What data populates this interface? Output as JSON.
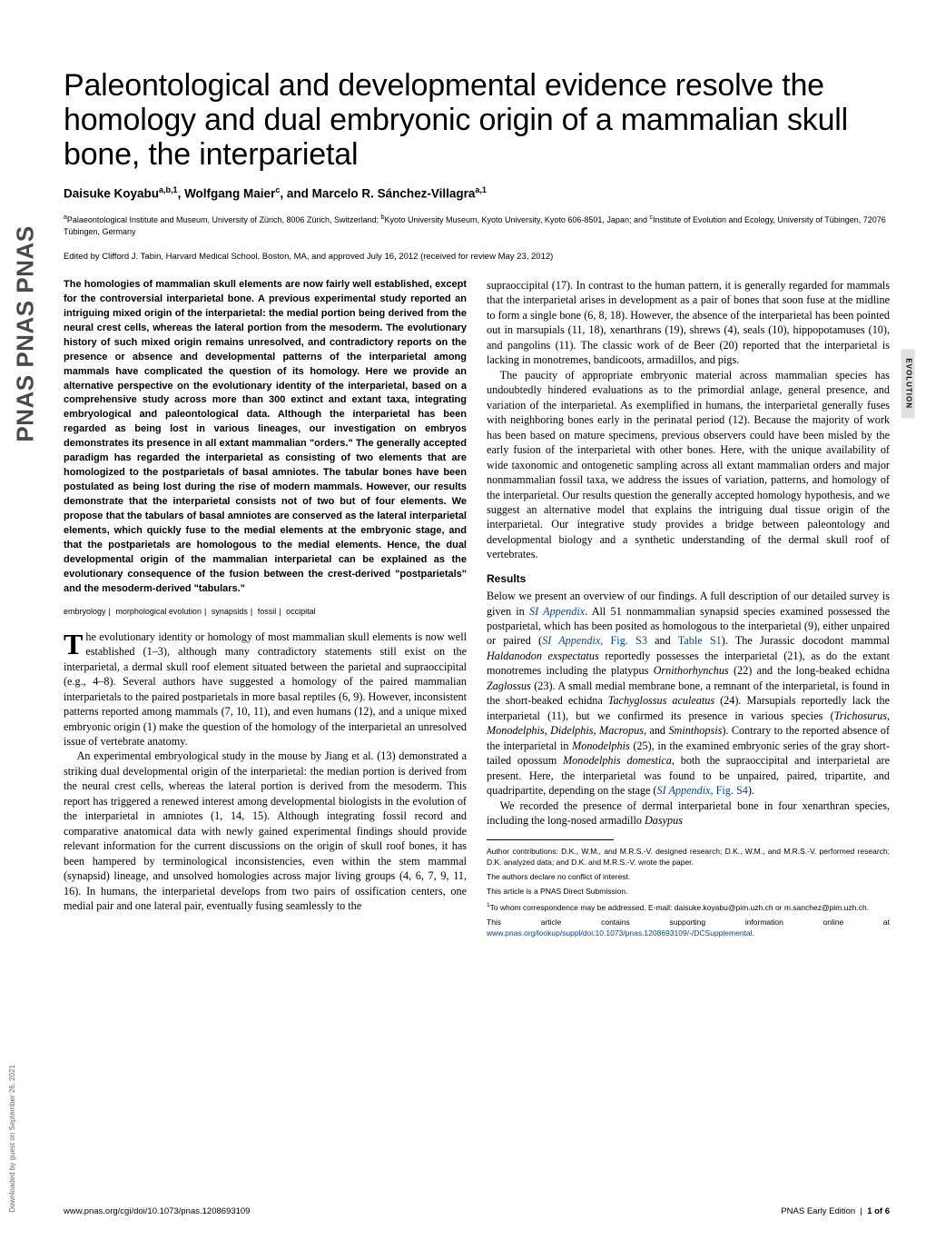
{
  "pnas_logo_repeat": "PNAS  PNAS  PNAS",
  "side_label": "EVOLUTION",
  "downloaded_note": "Downloaded by guest on September 26, 2021",
  "title": "Paleontological and developmental evidence resolve the homology and dual embryonic origin of a mammalian skull bone, the interparietal",
  "authors_html": "Daisuke Koyabu<sup>a,b,1</sup>, Wolfgang Maier<sup>c</sup>, and Marcelo R. Sánchez-Villagra<sup>a,1</sup>",
  "affiliations_html": "<sup>a</sup>Palaeontological Institute and Museum, University of Zürich, 8006 Zürich, Switzerland; <sup>b</sup>Kyoto University Museum, Kyoto University, Kyoto 606-8501, Japan; and <sup>c</sup>Institute of Evolution and Ecology, University of Tübingen, 72076 Tübingen, Germany",
  "edited": "Edited by Clifford J. Tabin, Harvard Medical School, Boston, MA, and approved July 16, 2012 (received for review May 23, 2012)",
  "abstract": "The homologies of mammalian skull elements are now fairly well established, except for the controversial interparietal bone. A previous experimental study reported an intriguing mixed origin of the interparietal: the medial portion being derived from the neural crest cells, whereas the lateral portion from the mesoderm. The evolutionary history of such mixed origin remains unresolved, and contradictory reports on the presence or absence and developmental patterns of the interparietal among mammals have complicated the question of its homology. Here we provide an alternative perspective on the evolutionary identity of the interparietal, based on a comprehensive study across more than 300 extinct and extant taxa, integrating embryological and paleontological data. Although the interparietal has been regarded as being lost in various lineages, our investigation on embryos demonstrates its presence in all extant mammalian \"orders.\" The generally accepted paradigm has regarded the interparietal as consisting of two elements that are homologized to the postparietals of basal amniotes. The tabular bones have been postulated as being lost during the rise of modern mammals. However, our results demonstrate that the interparietal consists not of two but of four elements. We propose that the tabulars of basal amniotes are conserved as the lateral interparietal elements, which quickly fuse to the medial elements at the embryonic stage, and that the postparietals are homologous to the medial elements. Hence, the dual developmental origin of the mammalian interparietal can be explained as the evolutionary consequence of the fusion between the crest-derived \"postparietals\" and the mesoderm-derived \"tabulars.\"",
  "keywords": [
    "embryology",
    "morphological evolution",
    "synapsids",
    "fossil",
    "occipital"
  ],
  "body": {
    "p1": "The evolutionary identity or homology of most mammalian skull elements is now well established (1–3), although many contradictory statements still exist on the interparietal, a dermal skull roof element situated between the parietal and supraoccipital (e.g., 4–8). Several authors have suggested a homology of the paired mammalian interparietals to the paired postparietals in more basal reptiles (6, 9). However, inconsistent patterns reported among mammals (7, 10, 11), and even humans (12), and a unique mixed embryonic origin (1) make the question of the homology of the interparietal an unresolved issue of vertebrate anatomy.",
    "p2": "An experimental embryological study in the mouse by Jiang et al. (13) demonstrated a striking dual developmental origin of the interparietal: the median portion is derived from the neural crest cells, whereas the lateral portion is derived from the mesoderm. This report has triggered a renewed interest among developmental biologists in the evolution of the interparietal in amniotes (1, 14, 15). Although integrating fossil record and comparative anatomical data with newly gained experimental findings should provide relevant information for the current discussions on the origin of skull roof bones, it has been hampered by terminological inconsistencies, even within the stem mammal (synapsid) lineage, and unsolved homologies across major living groups (4, 6, 7, 9, 11, 16). In humans, the interparietal develops from two pairs of ossification centers, one medial pair and one lateral pair, eventually fusing seamlessly to the",
    "p3": "supraoccipital (17). In contrast to the human pattern, it is generally regarded for mammals that the interparietal arises in development as a pair of bones that soon fuse at the midline to form a single bone (6, 8, 18). However, the absence of the interparietal has been pointed out in marsupials (11, 18), xenarthrans (19), shrews (4), seals (10), hippopotamuses (10), and pangolins (11). The classic work of de Beer (20) reported that the interparietal is lacking in monotremes, bandicoots, armadillos, and pigs.",
    "p4": "The paucity of appropriate embryonic material across mammalian species has undoubtedly hindered evaluations as to the primordial anlage, general presence, and variation of the interparietal. As exemplified in humans, the interparietal generally fuses with neighboring bones early in the perinatal period (12). Because the majority of work has been based on mature specimens, previous observers could have been misled by the early fusion of the interparietal with other bones. Here, with the unique availability of wide taxonomic and ontogenetic sampling across all extant mammalian orders and major nonmammalian fossil taxa, we address the issues of variation, patterns, and homology of the interparietal. Our results question the generally accepted homology hypothesis, and we suggest an alternative model that explains the intriguing dual tissue origin of the interparietal. Our integrative study provides a bridge between paleontology and developmental biology and a synthetic understanding of the dermal skull roof of vertebrates.",
    "results_head": "Results",
    "p5_html": "Below we present an overview of our findings. A full description of our detailed survey is given in <span class='italic link'>SI Appendix</span>. All 51 nonmammalian synapsid species examined possessed the postparietal, which has been posited as homologous to the interparietal (9), either unpaired or paired (<span class='italic link'>SI Appendix</span><span class='link'>, Fig. S3</span> and <span class='link'>Table S1</span>). The Jurassic docodont mammal <span class='italic'>Haldanodon exspectatus</span> reportedly possesses the interparietal (21), as do the extant monotremes including the platypus <span class='italic'>Ornithorhynchus</span> (22) and the long-beaked echidna <span class='italic'>Zaglossus</span> (23). A small medial membrane bone, a remnant of the interparietal, is found in the short-beaked echidna <span class='italic'>Tachyglossus aculeatus</span> (24). Marsupials reportedly lack the interparietal (11), but we confirmed its presence in various species (<span class='italic'>Trichosurus</span>, <span class='italic'>Monodelphis</span>, <span class='italic'>Didelphis</span>, <span class='italic'>Macropus</span>, and <span class='italic'>Sminthopsis</span>). Contrary to the reported absence of the interparietal in <span class='italic'>Monodelphis</span> (25), in the examined embryonic series of the gray short-tailed opossum <span class='italic'>Monodelphis domestica</span>, both the supraoccipital and interparietal are present. Here, the interparietal was found to be unpaired, paired, tripartite, and quadripartite, depending on the stage (<span class='italic link'>SI Appendix</span><span class='link'>, Fig. S4</span>).",
    "p6_html": "We recorded the presence of dermal interparietal bone in four xenarthran species, including the long-nosed armadillo <span class='italic'>Dasypus</span>"
  },
  "footnotes": {
    "author_contrib": "Author contributions: D.K., W.M., and M.R.S.-V. designed research; D.K., W.M., and M.R.S.-V. performed research; D.K. analyzed data; and D.K. and M.R.S.-V. wrote the paper.",
    "conflict": "The authors declare no conflict of interest.",
    "direct": "This article is a PNAS Direct Submission.",
    "correspondence_html": "<sup>1</sup>To whom correspondence may be addressed. E-mail: daisuke.koyabu@pim.uzh.ch or m.sanchez@pim.uzh.ch.",
    "si_html": "This article contains supporting information online at <span class='link'>www.pnas.org/lookup/suppl/doi:10.1073/pnas.1208693109/-/DCSupplemental</span>."
  },
  "footer": {
    "left": "www.pnas.org/cgi/doi/10.1073/pnas.1208693109",
    "right_html": "PNAS Early Edition&nbsp;&nbsp;|&nbsp;&nbsp;<b>1 of 6</b>"
  }
}
